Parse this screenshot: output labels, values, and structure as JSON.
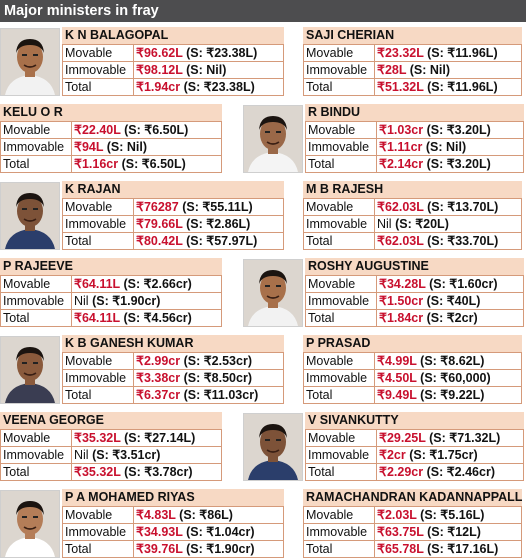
{
  "title": "Major ministers in fray",
  "labels": {
    "movable": "Movable",
    "immovable": "Immovable",
    "total": "Total"
  },
  "ministers": [
    {
      "name": "K N BALAGOPAL",
      "movable": {
        "amt": "₹96.62L",
        "spouse": "(S: ₹23.38L)"
      },
      "immovable": {
        "amt": "₹98.12L",
        "spouse": "(S: Nil)"
      },
      "total": {
        "amt": "₹1.94cr",
        "spouse": "(S: ₹23.38L)"
      }
    },
    {
      "name": "SAJI CHERIAN",
      "movable": {
        "amt": "₹23.32L",
        "spouse": "(S: ₹11.96L)"
      },
      "immovable": {
        "amt": "₹28L",
        "spouse": "(S: Nil)"
      },
      "total": {
        "amt": "₹51.32L",
        "spouse": "(S: ₹11.96L)"
      }
    },
    {
      "name": "KELU O R",
      "movable": {
        "amt": "₹22.40L",
        "spouse": "(S: ₹6.50L)"
      },
      "immovable": {
        "amt": "₹94L",
        "spouse": "(S: Nil)"
      },
      "total": {
        "amt": "₹1.16cr",
        "spouse": "(S: ₹6.50L)"
      }
    },
    {
      "name": "R BINDU",
      "movable": {
        "amt": "₹1.03cr",
        "spouse": "(S: ₹3.20L)"
      },
      "immovable": {
        "amt": "₹1.11cr",
        "spouse": "(S: Nil)"
      },
      "total": {
        "amt": "₹2.14cr",
        "spouse": "(S: ₹3.20L)"
      }
    },
    {
      "name": "K RAJAN",
      "movable": {
        "amt": "₹76287",
        "spouse": "(S: ₹55.11L)"
      },
      "immovable": {
        "amt": "₹79.66L",
        "spouse": "(S: ₹2.86L)"
      },
      "total": {
        "amt": "₹80.42L",
        "spouse": "(S: ₹57.97L)"
      }
    },
    {
      "name": "M B RAJESH",
      "movable": {
        "amt": "₹62.03L",
        "spouse": "(S: ₹13.70L)"
      },
      "immovable": {
        "amt": "Nil",
        "spouse": "(S: ₹20L)"
      },
      "total": {
        "amt": "₹62.03L",
        "spouse": "(S: ₹33.70L)"
      }
    },
    {
      "name": "P RAJEEVE",
      "movable": {
        "amt": "₹64.11L",
        "spouse": "(S: ₹2.66cr)"
      },
      "immovable": {
        "amt": "Nil",
        "spouse": "(S: ₹1.90cr)"
      },
      "total": {
        "amt": "₹64.11L",
        "spouse": "(S: ₹4.56cr)"
      }
    },
    {
      "name": "ROSHY AUGUSTINE",
      "movable": {
        "amt": "₹34.28L",
        "spouse": "(S: ₹1.60cr)"
      },
      "immovable": {
        "amt": "₹1.50cr",
        "spouse": "(S: ₹40L)"
      },
      "total": {
        "amt": "₹1.84cr",
        "spouse": "(S: ₹2cr)"
      }
    },
    {
      "name": "K B GANESH KUMAR",
      "movable": {
        "amt": "₹2.99cr",
        "spouse": "(S: ₹2.53cr)"
      },
      "immovable": {
        "amt": "₹3.38cr",
        "spouse": "(S: ₹8.50cr)"
      },
      "total": {
        "amt": "₹6.37cr",
        "spouse": "(S: ₹11.03cr)"
      }
    },
    {
      "name": "P PRASAD",
      "movable": {
        "amt": "₹4.99L",
        "spouse": "(S: ₹8.62L)"
      },
      "immovable": {
        "amt": "₹4.50L",
        "spouse": "(S: ₹60,000)"
      },
      "total": {
        "amt": "₹9.49L",
        "spouse": "(S: ₹9.22L)"
      }
    },
    {
      "name": "VEENA GEORGE",
      "movable": {
        "amt": "₹35.32L",
        "spouse": "(S: ₹27.14L)"
      },
      "immovable": {
        "amt": "Nil",
        "spouse": "(S: ₹3.51cr)"
      },
      "total": {
        "amt": "₹35.32L",
        "spouse": "(S: ₹3.78cr)"
      }
    },
    {
      "name": "V SIVANKUTTY",
      "movable": {
        "amt": "₹29.25L",
        "spouse": "(S: ₹71.32L)"
      },
      "immovable": {
        "amt": "₹2cr",
        "spouse": "(S: ₹1.75cr)"
      },
      "total": {
        "amt": "₹2.29cr",
        "spouse": "(S: ₹2.46cr)"
      }
    },
    {
      "name": "P A MOHAMED RIYAS",
      "movable": {
        "amt": "₹4.83L",
        "spouse": "(S: ₹86L)"
      },
      "immovable": {
        "amt": "₹34.93L",
        "spouse": "(S: ₹1.04cr)"
      },
      "total": {
        "amt": "₹39.76L",
        "spouse": "(S: ₹1.90cr)"
      }
    },
    {
      "name": "RAMACHANDRAN KADANNAPPALLI",
      "movable": {
        "amt": "₹2.03L",
        "spouse": "(S: ₹5.16L)"
      },
      "immovable": {
        "amt": "₹63.75L",
        "spouse": "(S: ₹12L)"
      },
      "total": {
        "amt": "₹65.78L",
        "spouse": "(S: ₹17.16L)"
      }
    }
  ]
}
